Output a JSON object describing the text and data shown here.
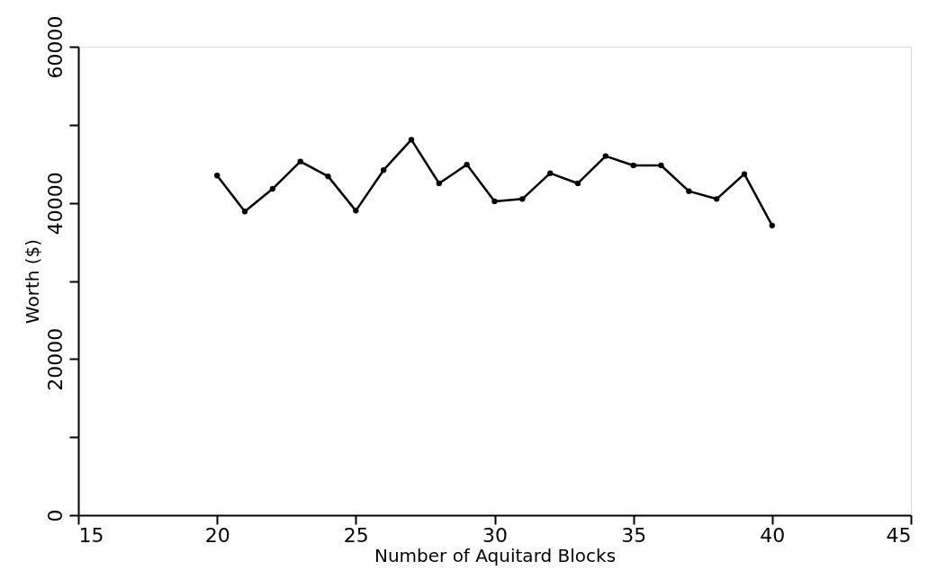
{
  "chart_data": {
    "type": "line",
    "xlabel": "Number of Aquitard Blocks",
    "ylabel": "Worth ($)",
    "x": [
      20,
      21,
      22,
      23,
      24,
      25,
      26,
      27,
      28,
      29,
      30,
      31,
      32,
      33,
      34,
      35,
      36,
      37,
      38,
      39,
      40
    ],
    "series": [
      {
        "color": "#000000",
        "values": [
          43500,
          38900,
          41800,
          45300,
          43400,
          39000,
          44200,
          48100,
          42500,
          44900,
          40200,
          40500,
          43800,
          42500,
          46000,
          44800,
          44800,
          41500,
          40500,
          43700,
          37100
        ]
      }
    ],
    "xlim": [
      15,
      45
    ],
    "xticks": [
      15,
      20,
      25,
      30,
      35,
      40,
      45
    ],
    "ylim": [
      0,
      60000
    ],
    "yticks": [
      0,
      {
        "value": 10000,
        "label": null
      },
      20000,
      {
        "value": 30000,
        "label": null
      },
      40000,
      {
        "value": 50000,
        "label": null
      },
      60000
    ],
    "grid": false,
    "legend": false,
    "marker": "circle",
    "line_style": "solid"
  }
}
